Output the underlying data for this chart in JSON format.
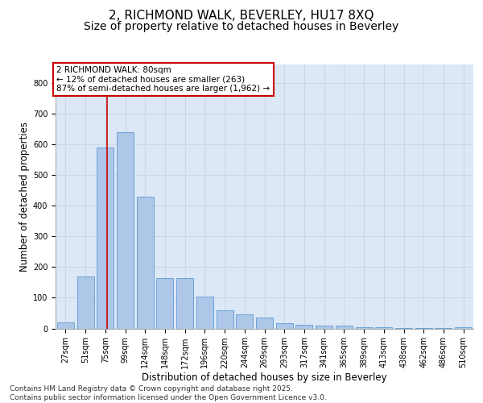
{
  "title_line1": "2, RICHMOND WALK, BEVERLEY, HU17 8XQ",
  "title_line2": "Size of property relative to detached houses in Beverley",
  "xlabel": "Distribution of detached houses by size in Beverley",
  "ylabel": "Number of detached properties",
  "categories": [
    "27sqm",
    "51sqm",
    "75sqm",
    "99sqm",
    "124sqm",
    "148sqm",
    "172sqm",
    "196sqm",
    "220sqm",
    "244sqm",
    "269sqm",
    "293sqm",
    "317sqm",
    "341sqm",
    "365sqm",
    "389sqm",
    "413sqm",
    "438sqm",
    "462sqm",
    "486sqm",
    "510sqm"
  ],
  "values": [
    20,
    170,
    590,
    640,
    430,
    165,
    165,
    105,
    58,
    45,
    35,
    18,
    13,
    10,
    8,
    5,
    3,
    2,
    1,
    1,
    5
  ],
  "bar_color": "#aec6e8",
  "bar_edge_color": "#5b9bd5",
  "grid_color": "#c8d8ea",
  "background_color": "#dce8f5",
  "vline_color": "#cc0000",
  "vline_index": 2.5,
  "annotation_text": "2 RICHMOND WALK: 80sqm\n← 12% of detached houses are smaller (263)\n87% of semi-detached houses are larger (1,962) →",
  "annotation_box_color": "#cc0000",
  "ylim": [
    0,
    860
  ],
  "yticks": [
    0,
    100,
    200,
    300,
    400,
    500,
    600,
    700,
    800
  ],
  "footnote": "Contains HM Land Registry data © Crown copyright and database right 2025.\nContains public sector information licensed under the Open Government Licence v3.0.",
  "title_fontsize": 11,
  "subtitle_fontsize": 10,
  "axis_label_fontsize": 8.5,
  "tick_fontsize": 7,
  "annotation_fontsize": 7.5,
  "footnote_fontsize": 6.5
}
